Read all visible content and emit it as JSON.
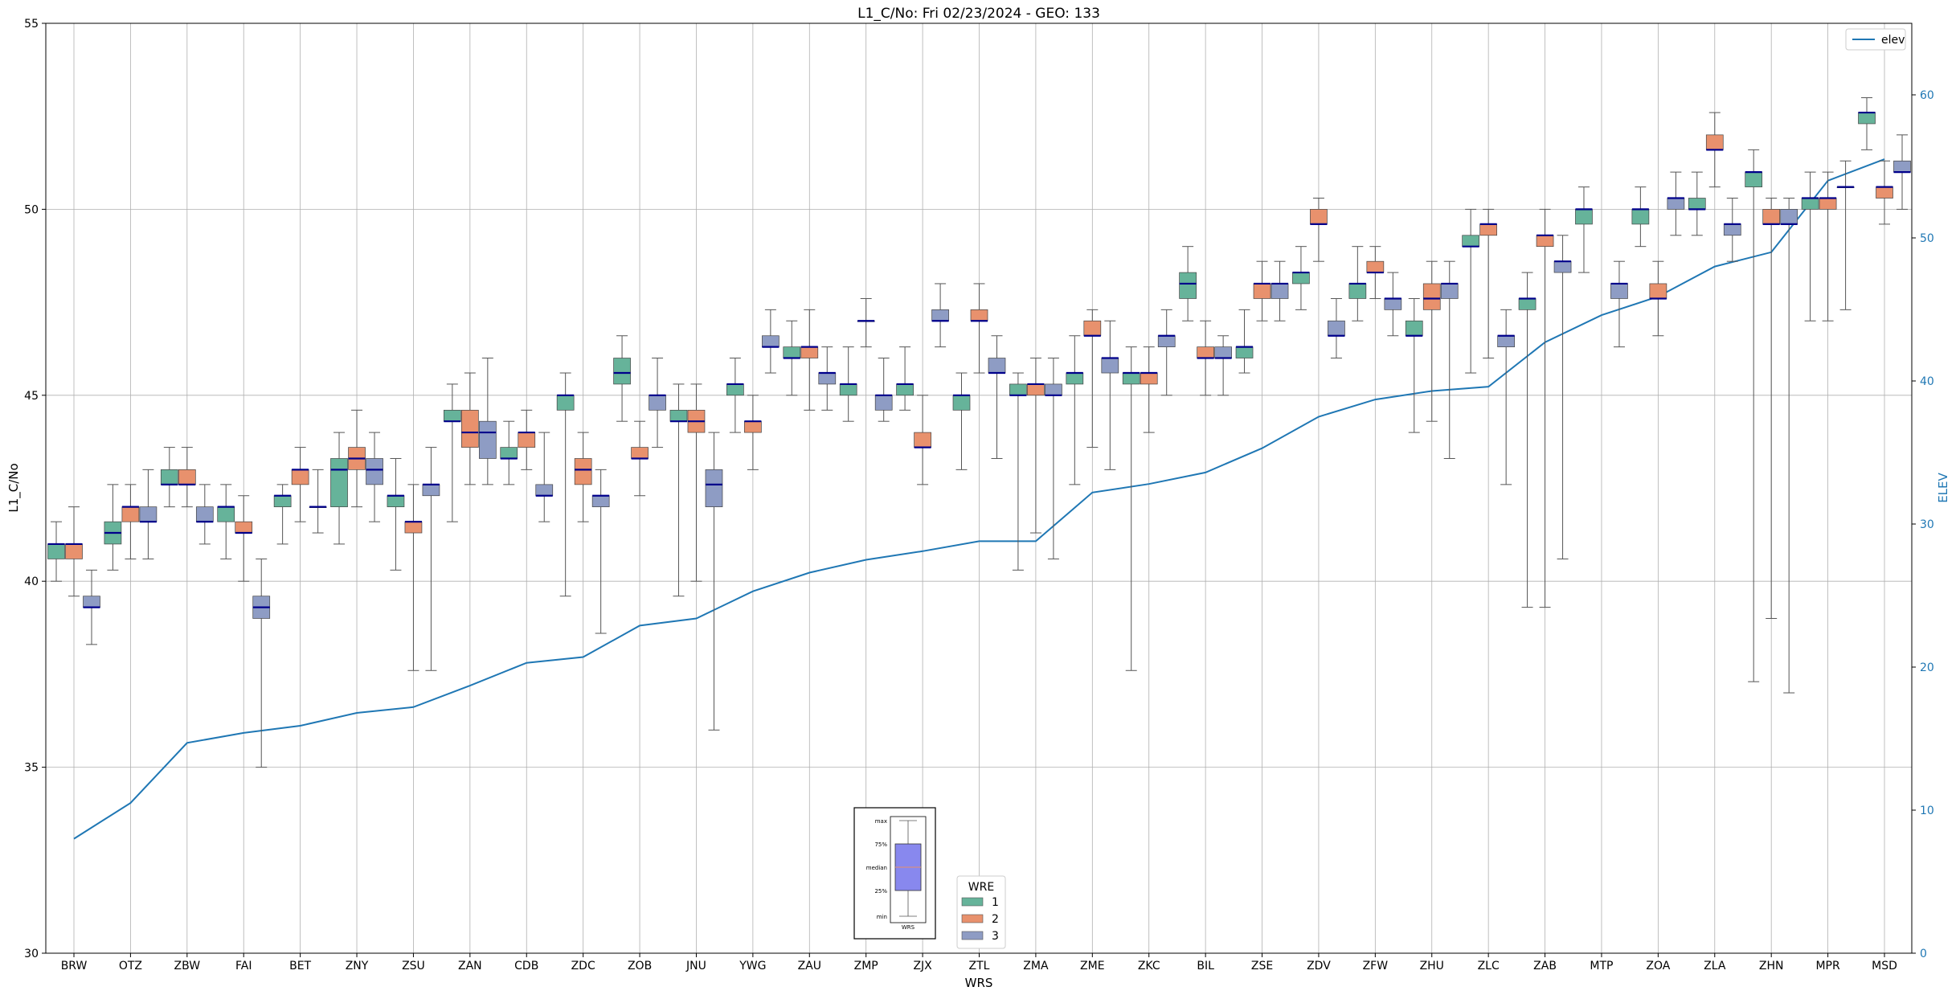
{
  "chart_data": {
    "type": "box",
    "title": "L1_C/No: Fri 02/23/2024 - GEO: 133",
    "xlabel": "WRS",
    "ylabel": "L1_C/No",
    "y2label": "ELEV",
    "ylim": [
      30,
      55
    ],
    "y2lim": [
      0,
      65
    ],
    "yticks": [
      "30",
      "35",
      "40",
      "45",
      "50",
      "55"
    ],
    "y2ticks": [
      "0",
      "10",
      "20",
      "30",
      "40",
      "50",
      "60"
    ],
    "grid": true,
    "categories": [
      "BRW",
      "OTZ",
      "ZBW",
      "FAI",
      "BET",
      "ZNY",
      "ZSU",
      "ZAN",
      "CDB",
      "ZDC",
      "ZOB",
      "JNU",
      "YWG",
      "ZAU",
      "ZMP",
      "ZJX",
      "ZTL",
      "ZMA",
      "ZME",
      "ZKC",
      "BIL",
      "ZSE",
      "ZDV",
      "ZFW",
      "ZHU",
      "ZLC",
      "ZAB",
      "MTP",
      "ZOA",
      "ZLA",
      "ZHN",
      "MPR",
      "MSD"
    ],
    "wre_colors": {
      "1": "#66b39a",
      "2": "#e8916d",
      "3": "#8e9cc4"
    },
    "median_color": "#00008b",
    "line_color": "#1f77b4",
    "elev_legend_label": "elev",
    "wre_legend_title": "WRE",
    "wre_legend_items": [
      "1",
      "2",
      "3"
    ],
    "inset_legend": {
      "labels": [
        "max",
        "75%",
        "median",
        "25%",
        "min"
      ],
      "xlabel": "WRS"
    },
    "elev": [
      8,
      10.5,
      14.7,
      15.4,
      15.9,
      16.8,
      17.2,
      18.7,
      20.3,
      20.7,
      22.9,
      23.4,
      25.3,
      26.6,
      27.5,
      28.1,
      28.8,
      28.8,
      32.2,
      32.8,
      33.6,
      35.3,
      37.5,
      38.7,
      39.3,
      39.6,
      42.7,
      44.6,
      45.9,
      48.0,
      49.0,
      54.0,
      55.5
    ],
    "boxes": [
      {
        "wrs": "BRW",
        "wre": "1",
        "min": 40.0,
        "q1": 40.6,
        "median": 41.0,
        "q3": 41.0,
        "max": 41.6
      },
      {
        "wrs": "BRW",
        "wre": "2",
        "min": 39.6,
        "q1": 40.6,
        "median": 41.0,
        "q3": 41.0,
        "max": 42.0
      },
      {
        "wrs": "BRW",
        "wre": "3",
        "min": 38.3,
        "q1": 39.3,
        "median": 39.3,
        "q3": 39.6,
        "max": 40.3
      },
      {
        "wrs": "OTZ",
        "wre": "1",
        "min": 40.3,
        "q1": 41.0,
        "median": 41.3,
        "q3": 41.6,
        "max": 42.6
      },
      {
        "wrs": "OTZ",
        "wre": "2",
        "min": 40.6,
        "q1": 41.6,
        "median": 42.0,
        "q3": 42.0,
        "max": 42.6
      },
      {
        "wrs": "OTZ",
        "wre": "3",
        "min": 40.6,
        "q1": 41.6,
        "median": 41.6,
        "q3": 42.0,
        "max": 43.0
      },
      {
        "wrs": "ZBW",
        "wre": "1",
        "min": 42.0,
        "q1": 42.6,
        "median": 42.6,
        "q3": 43.0,
        "max": 43.6
      },
      {
        "wrs": "ZBW",
        "wre": "2",
        "min": 42.0,
        "q1": 42.6,
        "median": 42.6,
        "q3": 43.0,
        "max": 43.6
      },
      {
        "wrs": "ZBW",
        "wre": "3",
        "min": 41.0,
        "q1": 41.6,
        "median": 41.6,
        "q3": 42.0,
        "max": 42.6
      },
      {
        "wrs": "FAI",
        "wre": "1",
        "min": 40.6,
        "q1": 41.6,
        "median": 42.0,
        "q3": 42.0,
        "max": 42.6
      },
      {
        "wrs": "FAI",
        "wre": "2",
        "min": 40.0,
        "q1": 41.3,
        "median": 41.3,
        "q3": 41.6,
        "max": 42.3
      },
      {
        "wrs": "FAI",
        "wre": "3",
        "min": 35.0,
        "q1": 39.0,
        "median": 39.3,
        "q3": 39.6,
        "max": 40.6
      },
      {
        "wrs": "BET",
        "wre": "1",
        "min": 41.0,
        "q1": 42.0,
        "median": 42.3,
        "q3": 42.3,
        "max": 42.6
      },
      {
        "wrs": "BET",
        "wre": "2",
        "min": 41.6,
        "q1": 42.6,
        "median": 43.0,
        "q3": 43.0,
        "max": 43.6
      },
      {
        "wrs": "BET",
        "wre": "3",
        "min": 41.3,
        "q1": 42.0,
        "median": 42.0,
        "q3": 42.0,
        "max": 43.0
      },
      {
        "wrs": "ZNY",
        "wre": "1",
        "min": 41.0,
        "q1": 42.0,
        "median": 43.0,
        "q3": 43.3,
        "max": 44.0
      },
      {
        "wrs": "ZNY",
        "wre": "2",
        "min": 42.0,
        "q1": 43.0,
        "median": 43.3,
        "q3": 43.6,
        "max": 44.6
      },
      {
        "wrs": "ZNY",
        "wre": "3",
        "min": 41.6,
        "q1": 42.6,
        "median": 43.0,
        "q3": 43.3,
        "max": 44.0
      },
      {
        "wrs": "ZSU",
        "wre": "1",
        "min": 40.3,
        "q1": 42.0,
        "median": 42.3,
        "q3": 42.3,
        "max": 43.3
      },
      {
        "wrs": "ZSU",
        "wre": "2",
        "min": 37.6,
        "q1": 41.3,
        "median": 41.6,
        "q3": 41.6,
        "max": 42.6
      },
      {
        "wrs": "ZSU",
        "wre": "3",
        "min": 37.6,
        "q1": 42.3,
        "median": 42.6,
        "q3": 42.6,
        "max": 43.6
      },
      {
        "wrs": "ZAN",
        "wre": "1",
        "min": 41.6,
        "q1": 44.3,
        "median": 44.3,
        "q3": 44.6,
        "max": 45.3
      },
      {
        "wrs": "ZAN",
        "wre": "2",
        "min": 42.6,
        "q1": 43.6,
        "median": 44.0,
        "q3": 44.6,
        "max": 45.6
      },
      {
        "wrs": "ZAN",
        "wre": "3",
        "min": 42.6,
        "q1": 43.3,
        "median": 44.0,
        "q3": 44.3,
        "max": 46.0
      },
      {
        "wrs": "CDB",
        "wre": "1",
        "min": 42.6,
        "q1": 43.3,
        "median": 43.3,
        "q3": 43.6,
        "max": 44.3
      },
      {
        "wrs": "CDB",
        "wre": "2",
        "min": 43.0,
        "q1": 43.6,
        "median": 44.0,
        "q3": 44.0,
        "max": 44.6
      },
      {
        "wrs": "CDB",
        "wre": "3",
        "min": 41.6,
        "q1": 42.3,
        "median": 42.3,
        "q3": 42.6,
        "max": 44.0
      },
      {
        "wrs": "ZDC",
        "wre": "1",
        "min": 39.6,
        "q1": 44.6,
        "median": 45.0,
        "q3": 45.0,
        "max": 45.6
      },
      {
        "wrs": "ZDC",
        "wre": "2",
        "min": 41.6,
        "q1": 42.6,
        "median": 43.0,
        "q3": 43.3,
        "max": 44.0
      },
      {
        "wrs": "ZDC",
        "wre": "3",
        "min": 38.6,
        "q1": 42.0,
        "median": 42.3,
        "q3": 42.3,
        "max": 43.0
      },
      {
        "wrs": "ZOB",
        "wre": "1",
        "min": 44.3,
        "q1": 45.3,
        "median": 45.6,
        "q3": 46.0,
        "max": 46.6
      },
      {
        "wrs": "ZOB",
        "wre": "2",
        "min": 42.3,
        "q1": 43.3,
        "median": 43.3,
        "q3": 43.6,
        "max": 44.3
      },
      {
        "wrs": "ZOB",
        "wre": "3",
        "min": 43.6,
        "q1": 44.6,
        "median": 45.0,
        "q3": 45.0,
        "max": 46.0
      },
      {
        "wrs": "JNU",
        "wre": "1",
        "min": 39.6,
        "q1": 44.3,
        "median": 44.3,
        "q3": 44.6,
        "max": 45.3
      },
      {
        "wrs": "JNU",
        "wre": "2",
        "min": 40.0,
        "q1": 44.0,
        "median": 44.3,
        "q3": 44.6,
        "max": 45.3
      },
      {
        "wrs": "JNU",
        "wre": "3",
        "min": 36.0,
        "q1": 42.0,
        "median": 42.6,
        "q3": 43.0,
        "max": 44.0
      },
      {
        "wrs": "YWG",
        "wre": "1",
        "min": 44.0,
        "q1": 45.0,
        "median": 45.3,
        "q3": 45.3,
        "max": 46.0
      },
      {
        "wrs": "YWG",
        "wre": "2",
        "min": 43.0,
        "q1": 44.0,
        "median": 44.3,
        "q3": 44.3,
        "max": 45.0
      },
      {
        "wrs": "YWG",
        "wre": "3",
        "min": 45.6,
        "q1": 46.3,
        "median": 46.3,
        "q3": 46.6,
        "max": 47.3
      },
      {
        "wrs": "ZAU",
        "wre": "1",
        "min": 45.0,
        "q1": 46.0,
        "median": 46.0,
        "q3": 46.3,
        "max": 47.0
      },
      {
        "wrs": "ZAU",
        "wre": "2",
        "min": 44.6,
        "q1": 46.0,
        "median": 46.3,
        "q3": 46.3,
        "max": 47.3
      },
      {
        "wrs": "ZAU",
        "wre": "3",
        "min": 44.6,
        "q1": 45.3,
        "median": 45.6,
        "q3": 45.6,
        "max": 46.3
      },
      {
        "wrs": "ZMP",
        "wre": "1",
        "min": 44.3,
        "q1": 45.0,
        "median": 45.3,
        "q3": 45.3,
        "max": 46.3
      },
      {
        "wrs": "ZMP",
        "wre": "2",
        "min": 46.3,
        "q1": 47.0,
        "median": 47.0,
        "q3": 47.0,
        "max": 47.6
      },
      {
        "wrs": "ZMP",
        "wre": "3",
        "min": 44.3,
        "q1": 44.6,
        "median": 45.0,
        "q3": 45.0,
        "max": 46.0
      },
      {
        "wrs": "ZJX",
        "wre": "1",
        "min": 44.6,
        "q1": 45.0,
        "median": 45.3,
        "q3": 45.3,
        "max": 46.3
      },
      {
        "wrs": "ZJX",
        "wre": "2",
        "min": 42.6,
        "q1": 43.6,
        "median": 43.6,
        "q3": 44.0,
        "max": 45.0
      },
      {
        "wrs": "ZJX",
        "wre": "3",
        "min": 46.3,
        "q1": 47.0,
        "median": 47.0,
        "q3": 47.3,
        "max": 48.0
      },
      {
        "wrs": "ZTL",
        "wre": "1",
        "min": 43.0,
        "q1": 44.6,
        "median": 45.0,
        "q3": 45.0,
        "max": 45.6
      },
      {
        "wrs": "ZTL",
        "wre": "2",
        "min": 45.6,
        "q1": 47.0,
        "median": 47.0,
        "q3": 47.3,
        "max": 48.0
      },
      {
        "wrs": "ZTL",
        "wre": "3",
        "min": 43.3,
        "q1": 45.6,
        "median": 45.6,
        "q3": 46.0,
        "max": 46.6
      },
      {
        "wrs": "ZMA",
        "wre": "1",
        "min": 40.3,
        "q1": 45.0,
        "median": 45.0,
        "q3": 45.3,
        "max": 45.6
      },
      {
        "wrs": "ZMA",
        "wre": "2",
        "min": 41.3,
        "q1": 45.0,
        "median": 45.3,
        "q3": 45.3,
        "max": 46.0
      },
      {
        "wrs": "ZMA",
        "wre": "3",
        "min": 40.6,
        "q1": 45.0,
        "median": 45.0,
        "q3": 45.3,
        "max": 46.0
      },
      {
        "wrs": "ZME",
        "wre": "1",
        "min": 42.6,
        "q1": 45.3,
        "median": 45.6,
        "q3": 45.6,
        "max": 46.6
      },
      {
        "wrs": "ZME",
        "wre": "2",
        "min": 43.6,
        "q1": 46.6,
        "median": 46.6,
        "q3": 47.0,
        "max": 47.3
      },
      {
        "wrs": "ZME",
        "wre": "3",
        "min": 43.0,
        "q1": 45.6,
        "median": 46.0,
        "q3": 46.0,
        "max": 47.0
      },
      {
        "wrs": "ZKC",
        "wre": "1",
        "min": 37.6,
        "q1": 45.3,
        "median": 45.6,
        "q3": 45.6,
        "max": 46.3
      },
      {
        "wrs": "ZKC",
        "wre": "2",
        "min": 44.0,
        "q1": 45.3,
        "median": 45.6,
        "q3": 45.6,
        "max": 46.3
      },
      {
        "wrs": "ZKC",
        "wre": "3",
        "min": 45.0,
        "q1": 46.3,
        "median": 46.6,
        "q3": 46.6,
        "max": 47.3
      },
      {
        "wrs": "BIL",
        "wre": "1",
        "min": 47.0,
        "q1": 47.6,
        "median": 48.0,
        "q3": 48.3,
        "max": 49.0
      },
      {
        "wrs": "BIL",
        "wre": "2",
        "min": 45.0,
        "q1": 46.0,
        "median": 46.0,
        "q3": 46.3,
        "max": 47.0
      },
      {
        "wrs": "BIL",
        "wre": "3",
        "min": 45.0,
        "q1": 46.0,
        "median": 46.0,
        "q3": 46.3,
        "max": 46.6
      },
      {
        "wrs": "ZSE",
        "wre": "1",
        "min": 45.6,
        "q1": 46.0,
        "median": 46.3,
        "q3": 46.3,
        "max": 47.3
      },
      {
        "wrs": "ZSE",
        "wre": "2",
        "min": 47.0,
        "q1": 47.6,
        "median": 48.0,
        "q3": 48.0,
        "max": 48.6
      },
      {
        "wrs": "ZSE",
        "wre": "3",
        "min": 47.0,
        "q1": 47.6,
        "median": 48.0,
        "q3": 48.0,
        "max": 48.6
      },
      {
        "wrs": "ZDV",
        "wre": "1",
        "min": 47.3,
        "q1": 48.0,
        "median": 48.3,
        "q3": 48.3,
        "max": 49.0
      },
      {
        "wrs": "ZDV",
        "wre": "2",
        "min": 48.6,
        "q1": 49.6,
        "median": 49.6,
        "q3": 50.0,
        "max": 50.3
      },
      {
        "wrs": "ZDV",
        "wre": "3",
        "min": 46.0,
        "q1": 46.6,
        "median": 46.6,
        "q3": 47.0,
        "max": 47.6
      },
      {
        "wrs": "ZFW",
        "wre": "1",
        "min": 47.0,
        "q1": 47.6,
        "median": 48.0,
        "q3": 48.0,
        "max": 49.0
      },
      {
        "wrs": "ZFW",
        "wre": "2",
        "min": 47.6,
        "q1": 48.3,
        "median": 48.3,
        "q3": 48.6,
        "max": 49.0
      },
      {
        "wrs": "ZFW",
        "wre": "3",
        "min": 46.6,
        "q1": 47.3,
        "median": 47.6,
        "q3": 47.6,
        "max": 48.3
      },
      {
        "wrs": "ZHU",
        "wre": "1",
        "min": 44.0,
        "q1": 46.6,
        "median": 46.6,
        "q3": 47.0,
        "max": 47.6
      },
      {
        "wrs": "ZHU",
        "wre": "2",
        "min": 44.3,
        "q1": 47.3,
        "median": 47.6,
        "q3": 48.0,
        "max": 48.6
      },
      {
        "wrs": "ZHU",
        "wre": "3",
        "min": 43.3,
        "q1": 47.6,
        "median": 48.0,
        "q3": 48.0,
        "max": 48.6
      },
      {
        "wrs": "ZLC",
        "wre": "1",
        "min": 45.6,
        "q1": 49.0,
        "median": 49.0,
        "q3": 49.3,
        "max": 50.0
      },
      {
        "wrs": "ZLC",
        "wre": "2",
        "min": 46.0,
        "q1": 49.3,
        "median": 49.6,
        "q3": 49.6,
        "max": 50.0
      },
      {
        "wrs": "ZLC",
        "wre": "3",
        "min": 42.6,
        "q1": 46.3,
        "median": 46.6,
        "q3": 46.6,
        "max": 47.3
      },
      {
        "wrs": "ZAB",
        "wre": "1",
        "min": 39.3,
        "q1": 47.3,
        "median": 47.6,
        "q3": 47.6,
        "max": 48.3
      },
      {
        "wrs": "ZAB",
        "wre": "2",
        "min": 39.3,
        "q1": 49.0,
        "median": 49.3,
        "q3": 49.3,
        "max": 50.0
      },
      {
        "wrs": "ZAB",
        "wre": "3",
        "min": 40.6,
        "q1": 48.3,
        "median": 48.6,
        "q3": 48.6,
        "max": 49.3
      },
      {
        "wrs": "MTP",
        "wre": "1",
        "min": 48.3,
        "q1": 49.6,
        "median": 50.0,
        "q3": 50.0,
        "max": 50.6
      },
      {
        "wrs": "MTP",
        "wre": "3",
        "min": 46.3,
        "q1": 47.6,
        "median": 48.0,
        "q3": 48.0,
        "max": 48.6
      },
      {
        "wrs": "ZOA",
        "wre": "1",
        "min": 49.0,
        "q1": 49.6,
        "median": 50.0,
        "q3": 50.0,
        "max": 50.6
      },
      {
        "wrs": "ZOA",
        "wre": "2",
        "min": 46.6,
        "q1": 47.6,
        "median": 47.6,
        "q3": 48.0,
        "max": 48.6
      },
      {
        "wrs": "ZOA",
        "wre": "3",
        "min": 49.3,
        "q1": 50.0,
        "median": 50.3,
        "q3": 50.3,
        "max": 51.0
      },
      {
        "wrs": "ZLA",
        "wre": "1",
        "min": 49.3,
        "q1": 50.0,
        "median": 50.0,
        "q3": 50.3,
        "max": 51.0
      },
      {
        "wrs": "ZLA",
        "wre": "2",
        "min": 50.6,
        "q1": 51.6,
        "median": 51.6,
        "q3": 52.0,
        "max": 52.6
      },
      {
        "wrs": "ZLA",
        "wre": "3",
        "min": 48.6,
        "q1": 49.3,
        "median": 49.6,
        "q3": 49.6,
        "max": 50.3
      },
      {
        "wrs": "ZHN",
        "wre": "1",
        "min": 37.3,
        "q1": 50.6,
        "median": 51.0,
        "q3": 51.0,
        "max": 51.6
      },
      {
        "wrs": "ZHN",
        "wre": "2",
        "min": 39.0,
        "q1": 49.6,
        "median": 49.6,
        "q3": 50.0,
        "max": 50.3
      },
      {
        "wrs": "ZHN",
        "wre": "3",
        "min": 37.0,
        "q1": 49.6,
        "median": 49.6,
        "q3": 50.0,
        "max": 50.3
      },
      {
        "wrs": "MPR",
        "wre": "1",
        "min": 47.0,
        "q1": 50.0,
        "median": 50.3,
        "q3": 50.3,
        "max": 51.0
      },
      {
        "wrs": "MPR",
        "wre": "2",
        "min": 47.0,
        "q1": 50.0,
        "median": 50.3,
        "q3": 50.3,
        "max": 51.0
      },
      {
        "wrs": "MPR",
        "wre": "3",
        "min": 47.3,
        "q1": 50.6,
        "median": 50.6,
        "q3": 50.6,
        "max": 51.3
      },
      {
        "wrs": "MSD",
        "wre": "1",
        "min": 51.6,
        "q1": 52.3,
        "median": 52.6,
        "q3": 52.6,
        "max": 53.0
      },
      {
        "wrs": "MSD",
        "wre": "2",
        "min": 49.6,
        "q1": 50.3,
        "median": 50.6,
        "q3": 50.6,
        "max": 51.3
      },
      {
        "wrs": "MSD",
        "wre": "3",
        "min": 50.0,
        "q1": 51.0,
        "median": 51.0,
        "q3": 51.3,
        "max": 52.0
      }
    ]
  }
}
